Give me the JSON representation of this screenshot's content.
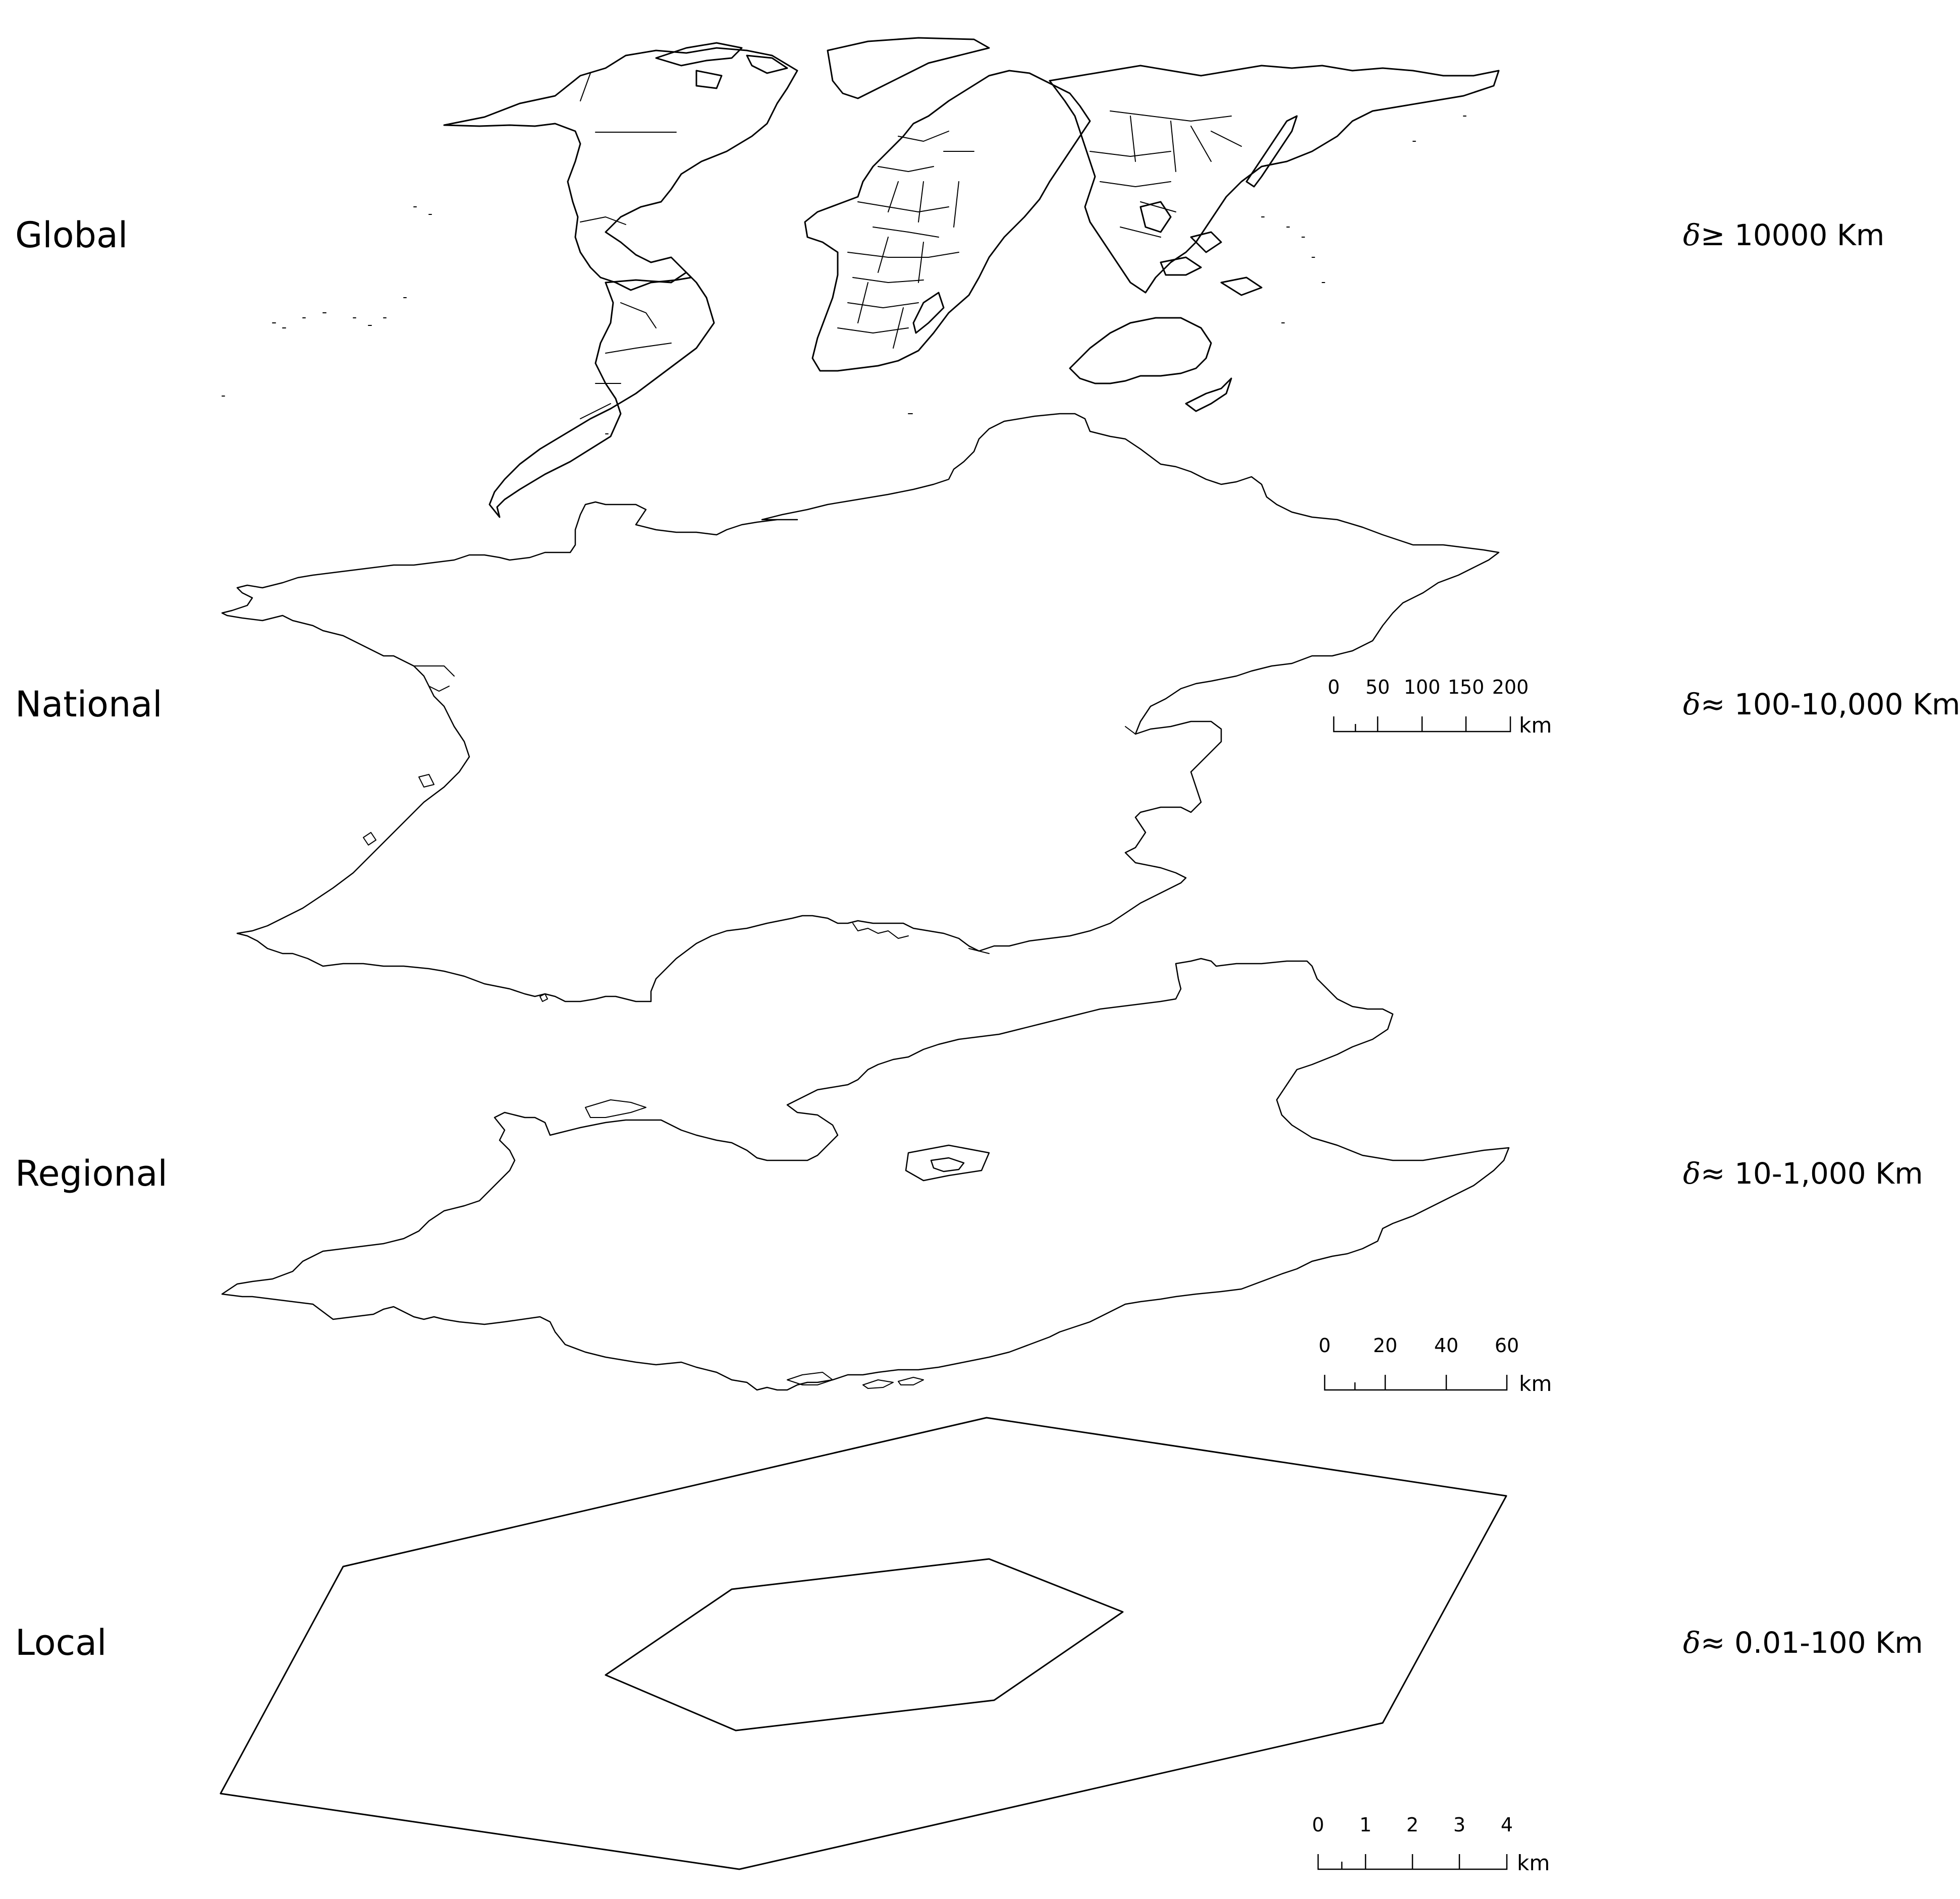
{
  "layers": [
    {
      "id": "global",
      "label": "Global",
      "delta_symbol": "δ",
      "scale_text": "≥ 10000 Km"
    },
    {
      "id": "national",
      "label": "National",
      "delta_symbol": "δ",
      "scale_text": "≈  100-10,000 Km"
    },
    {
      "id": "regional",
      "label": "Regional",
      "delta_symbol": "δ",
      "scale_text": "≈  10-1,000 Km"
    },
    {
      "id": "local",
      "label": "Local",
      "delta_symbol": "δ",
      "scale_text": "≈  0.01-100  Km"
    }
  ],
  "scalebars": [
    {
      "layer": "national",
      "ticks": [
        "0",
        "50",
        "100",
        "150",
        "200"
      ],
      "unit": "km"
    },
    {
      "layer": "regional",
      "ticks": [
        "0",
        "20",
        "40",
        "60"
      ],
      "unit": "km"
    },
    {
      "layer": "local",
      "ticks": [
        "0",
        "1",
        "2",
        "3",
        "4"
      ],
      "unit": "km"
    }
  ],
  "colors": {
    "line": "#000000",
    "background": "#ffffff"
  }
}
